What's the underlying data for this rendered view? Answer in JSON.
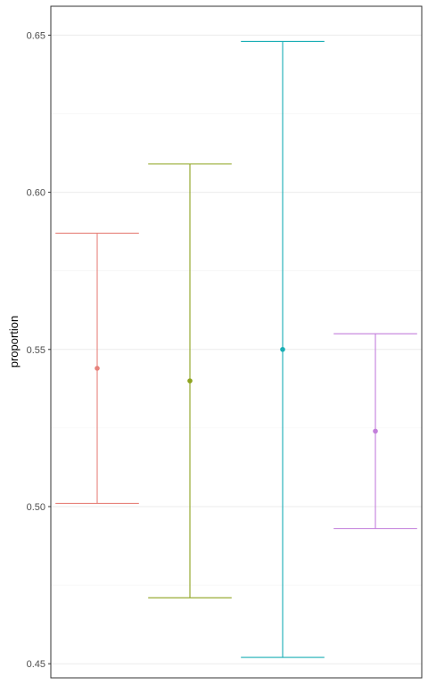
{
  "chart_data": {
    "type": "errorbar",
    "ylabel": "proportion",
    "xlabel": "",
    "ylim": [
      0.4455,
      0.6592
    ],
    "yticks": [
      0.45,
      0.5,
      0.55,
      0.6,
      0.65
    ],
    "ytick_labels": [
      "0.45",
      "0.50",
      "0.55",
      "0.60",
      "0.65"
    ],
    "grid": true,
    "legend": "none",
    "series": [
      {
        "color": "#e7837c",
        "estimate": 0.544,
        "lower": 0.501,
        "upper": 0.587
      },
      {
        "color": "#8ea31f",
        "estimate": 0.54,
        "lower": 0.471,
        "upper": 0.609
      },
      {
        "color": "#19aeb5",
        "estimate": 0.55,
        "lower": 0.452,
        "upper": 0.648
      },
      {
        "color": "#c37fdb",
        "estimate": 0.524,
        "lower": 0.493,
        "upper": 0.555
      }
    ]
  }
}
